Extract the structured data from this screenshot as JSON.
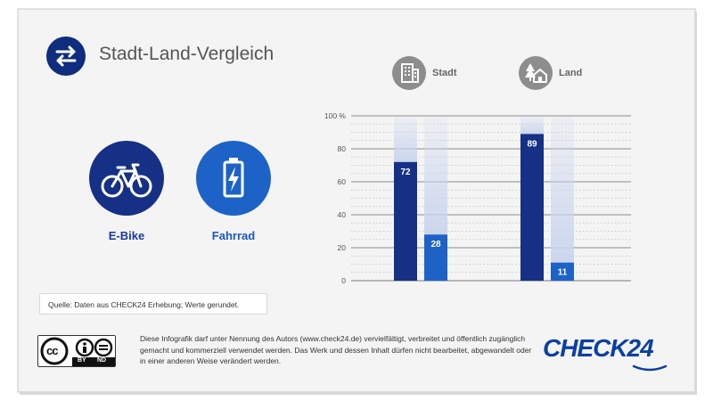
{
  "title": "Stadt-Land-Vergleich",
  "categories": {
    "ebike": "E-Bike",
    "fahrrad": "Fahrrad"
  },
  "legend": {
    "stadt": "Stadt",
    "land": "Land"
  },
  "source": "Quelle: Daten aus CHECK24 Erhebung; Werte gerundet.",
  "license": {
    "cc": "cc",
    "by": "BY",
    "nd": "ND",
    "text": "Diese Infografik darf unter Nennung des Autors (www.check24.de) vervielfältigt, verbreitet und öffentlich zugänglich gemacht und kommerziell verwendet werden. Das Werk und dessen Inhalt dürfen nicht bearbeitet, abgewandelt oder in einer anderen Weise verändert werden."
  },
  "brand": "CHECK24",
  "colors": {
    "ebike": "#163086",
    "fahrrad": "#1d63c7",
    "ghost": "#c9d5ee"
  },
  "icons": {
    "title": "swap-arrows-icon",
    "ebike": "bicycle-icon",
    "fahrrad": "battery-charging-icon",
    "stadt": "city-building-icon",
    "land": "countryside-house-icon"
  },
  "chart_data": {
    "type": "bar",
    "categories": [
      "Stadt",
      "Land"
    ],
    "series": [
      {
        "name": "E-Bike",
        "values": [
          72,
          89
        ]
      },
      {
        "name": "Fahrrad",
        "values": [
          28,
          11
        ]
      }
    ],
    "ylim": [
      0,
      100
    ],
    "yticks": [
      0,
      20,
      40,
      60,
      80,
      100
    ],
    "ytick_labels": [
      "0",
      "20",
      "40",
      "60",
      "80",
      "100 %"
    ],
    "grid": true,
    "data_labels": true
  }
}
